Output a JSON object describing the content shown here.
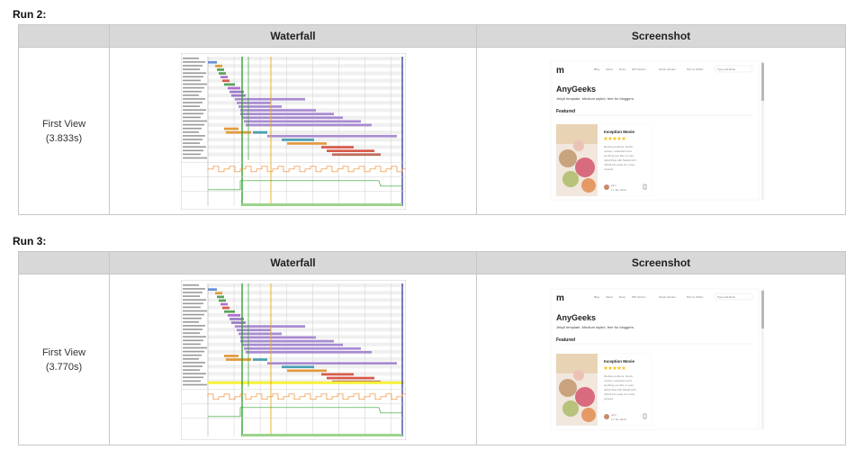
{
  "runs": [
    {
      "title": "Run 2:",
      "headers": {
        "waterfall": "Waterfall",
        "screenshot": "Screenshot"
      },
      "view": {
        "label": "First View",
        "time": "(3.833s)"
      },
      "screenshot": {
        "brand": "m",
        "nav": [
          "Blog",
          "About",
          "Docs",
          "WP Version",
          "Ghost Version",
          "Pint on Gitbut",
          "Type and Enter"
        ],
        "title": "AnyGeeks",
        "subtitle": "Jekyll template, Medium styled, free for bloggers.",
        "section": "Featured",
        "card_title": "Inception Movie",
        "card_body": [
          "Review products, books,",
          "movies, restaurant and",
          "anything you like on your",
          "Jekyll blog with Mediumish",
          "JSON-LD ready for movie",
          "reviews."
        ],
        "author": "john",
        "date": "17 Jan 2019"
      }
    },
    {
      "title": "Run 3:",
      "headers": {
        "waterfall": "Waterfall",
        "screenshot": "Screenshot"
      },
      "view": {
        "label": "First View",
        "time": "(3.770s)"
      },
      "screenshot": {
        "brand": "m",
        "nav": [
          "Blog",
          "About",
          "Docs",
          "WP Version",
          "Ghost Version",
          "Pint on Gitbut",
          "Type and Enter"
        ],
        "title": "AnyGeeks",
        "subtitle": "Jekyll template, Medium styled, free for bloggers.",
        "section": "Featured",
        "card_title": "Inception Movie",
        "card_body": [
          "Review products, books,",
          "movies, restaurant and",
          "anything you like on your",
          "Jekyll blog with Mediumish",
          "JSON-LD ready for movie",
          "reviews."
        ],
        "author": "john",
        "date": "17 Jan 2019"
      }
    }
  ]
}
